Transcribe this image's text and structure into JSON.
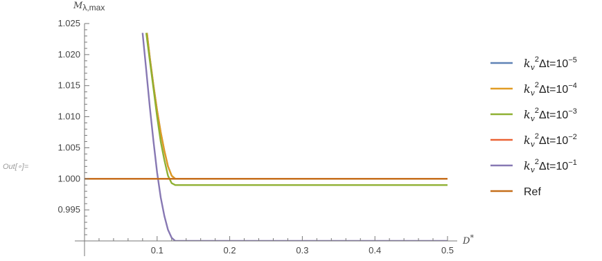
{
  "cell_label": "Out[∘]=",
  "chart_data": {
    "type": "line",
    "title": "",
    "xlabel_main": "D",
    "xlabel_sup": "*",
    "ylabel_main": "M",
    "ylabel_sub": "λ,max",
    "xlim": [
      0.0,
      0.5
    ],
    "ylim": [
      0.99,
      1.025
    ],
    "x_axis_at_y": 0.99,
    "y_axis_at_x": 0.0,
    "x_ticks": [
      {
        "value": 0.1,
        "label": "0.1"
      },
      {
        "value": 0.2,
        "label": "0.2"
      },
      {
        "value": 0.3,
        "label": "0.3"
      },
      {
        "value": 0.4,
        "label": "0.4"
      },
      {
        "value": 0.5,
        "label": "0.5"
      }
    ],
    "y_ticks": [
      {
        "value": 0.995,
        "label": "0.995"
      },
      {
        "value": 1.0,
        "label": "1.000"
      },
      {
        "value": 1.005,
        "label": "1.005"
      },
      {
        "value": 1.01,
        "label": "1.010"
      },
      {
        "value": 1.015,
        "label": "1.015"
      },
      {
        "value": 1.02,
        "label": "1.020"
      },
      {
        "value": 1.025,
        "label": "1.025"
      }
    ],
    "grid": false,
    "legend_position": "right",
    "series": [
      {
        "legend_base": "k",
        "legend_sub": "v",
        "legend_sup2": "2",
        "legend_mid": "Δt=10",
        "legend_exp": "−5",
        "color": "#5E81B5",
        "points": [
          [
            0.086,
            1.0235
          ],
          [
            0.09,
            1.0195
          ],
          [
            0.095,
            1.015
          ],
          [
            0.1,
            1.011
          ],
          [
            0.105,
            1.0075
          ],
          [
            0.11,
            1.0045
          ],
          [
            0.115,
            1.002
          ],
          [
            0.12,
            1.0005
          ],
          [
            0.125,
            1.0
          ],
          [
            0.5,
            1.0
          ]
        ]
      },
      {
        "legend_base": "k",
        "legend_sub": "v",
        "legend_sup2": "2",
        "legend_mid": "Δt=10",
        "legend_exp": "−4",
        "color": "#E19C24",
        "points": [
          [
            0.086,
            1.0235
          ],
          [
            0.09,
            1.0195
          ],
          [
            0.095,
            1.015
          ],
          [
            0.1,
            1.011
          ],
          [
            0.105,
            1.0075
          ],
          [
            0.11,
            1.0045
          ],
          [
            0.115,
            1.002
          ],
          [
            0.12,
            1.0005
          ],
          [
            0.125,
            1.0
          ],
          [
            0.5,
            1.0
          ]
        ]
      },
      {
        "legend_base": "k",
        "legend_sub": "v",
        "legend_sup2": "2",
        "legend_mid": "Δt=10",
        "legend_exp": "−3",
        "color": "#8FB032",
        "points": [
          [
            0.085,
            1.0235
          ],
          [
            0.09,
            1.019
          ],
          [
            0.095,
            1.0145
          ],
          [
            0.1,
            1.01
          ],
          [
            0.105,
            1.006
          ],
          [
            0.11,
            1.003
          ],
          [
            0.115,
            1.0005
          ],
          [
            0.12,
            0.9993
          ],
          [
            0.125,
            0.999
          ],
          [
            0.5,
            0.999
          ]
        ]
      },
      {
        "legend_base": "k",
        "legend_sub": "v",
        "legend_sup2": "2",
        "legend_mid": "Δt=10",
        "legend_exp": "−2",
        "color": "#EB6235",
        "points": [
          [
            0.0,
            1.0
          ],
          [
            0.5,
            1.0
          ]
        ]
      },
      {
        "legend_base": "k",
        "legend_sub": "v",
        "legend_sup2": "2",
        "legend_mid": "Δt=10",
        "legend_exp": "−1",
        "color": "#8778B3",
        "points": [
          [
            0.08,
            1.0235
          ],
          [
            0.085,
            1.0175
          ],
          [
            0.09,
            1.0115
          ],
          [
            0.095,
            1.006
          ],
          [
            0.1,
            1.001
          ],
          [
            0.105,
            0.997
          ],
          [
            0.11,
            0.994
          ],
          [
            0.115,
            0.9918
          ],
          [
            0.12,
            0.9905
          ],
          [
            0.125,
            0.99
          ],
          [
            0.5,
            0.99
          ]
        ]
      },
      {
        "legend_base": "Ref",
        "color": "#C56E1A",
        "points": [
          [
            0.0,
            1.0
          ],
          [
            0.5,
            1.0
          ]
        ]
      }
    ]
  }
}
